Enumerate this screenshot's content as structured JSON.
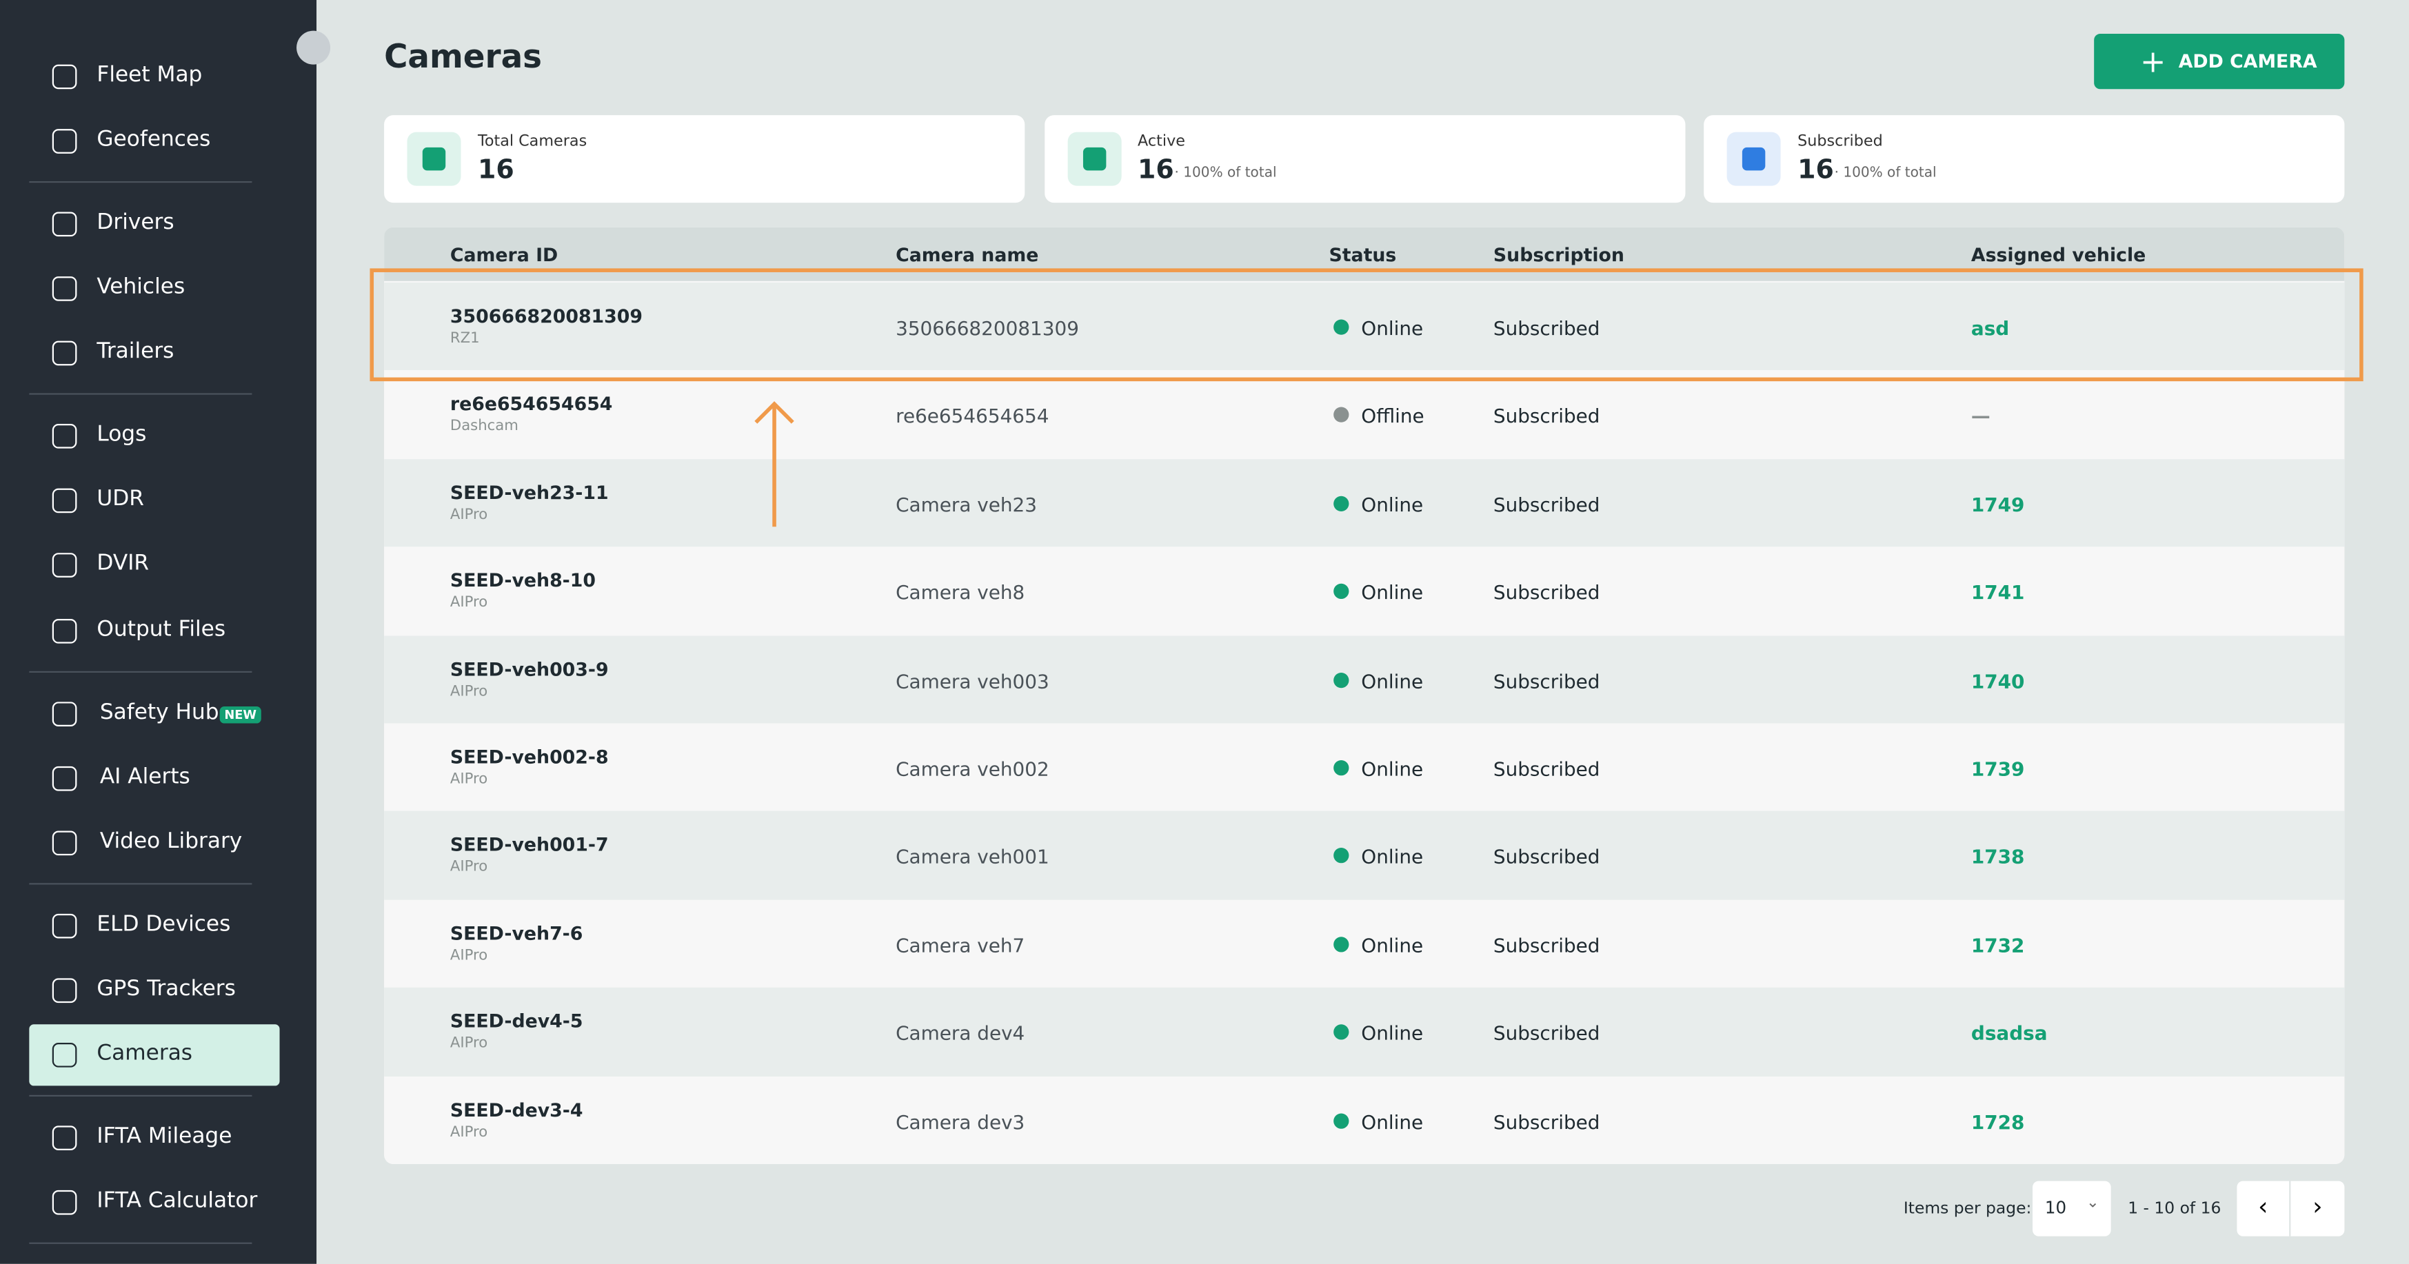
{
  "sidebar": {
    "groups": [
      [
        {
          "label": "Fleet Map"
        },
        {
          "label": "Geofences"
        }
      ],
      [
        {
          "label": "Drivers"
        },
        {
          "label": "Vehicles"
        },
        {
          "label": "Trailers"
        }
      ],
      [
        {
          "label": "Logs"
        },
        {
          "label": "UDR"
        },
        {
          "label": "DVIR"
        },
        {
          "label": "Output Files"
        }
      ],
      [
        {
          "label": "Safety Hub",
          "badge": "NEW"
        },
        {
          "label": "AI Alerts"
        },
        {
          "label": "Video Library"
        }
      ],
      [
        {
          "label": "ELD Devices"
        },
        {
          "label": "GPS Trackers"
        },
        {
          "label": "Cameras",
          "active": true
        }
      ],
      [
        {
          "label": "IFTA Mileage"
        },
        {
          "label": "IFTA Calculator"
        }
      ]
    ]
  },
  "header": {
    "title": "Cameras",
    "add_button": "ADD CAMERA"
  },
  "stats": [
    {
      "label": "Total Cameras",
      "value": 16,
      "icon_color": "#14a074",
      "icon_bg": "#dff3ec"
    },
    {
      "label": "Active",
      "value": 16,
      "note": "· 100% of total",
      "icon_color": "#14a074",
      "icon_bg": "#dff3ec"
    },
    {
      "label": "Subscribed",
      "value": 16,
      "note": "· 100% of total",
      "icon_color": "#2f7de1",
      "icon_bg": "#e2edfb"
    }
  ],
  "table": {
    "columns": [
      "Camera ID",
      "Camera name",
      "Status",
      "Subscription",
      "Assigned vehicle"
    ],
    "rows": [
      {
        "id": "350666820081309",
        "model": "RZ1",
        "name": "350666820081309",
        "status": "Online",
        "status_color": "#14a074",
        "subscription": "Subscribed",
        "vehicle": "asd",
        "vehicle_color": "#14a074"
      },
      {
        "id": "re6e654654654",
        "model": "Dashcam",
        "name": "re6e654654654",
        "status": "Offline",
        "status_color": "#8a9190",
        "subscription": "Subscribed",
        "vehicle": "—",
        "vehicle_color": "#8a9190"
      },
      {
        "id": "SEED-veh23-11",
        "model": "AIPro",
        "name": "Camera veh23",
        "status": "Online",
        "status_color": "#14a074",
        "subscription": "Subscribed",
        "vehicle": "1749",
        "vehicle_color": "#14a074"
      },
      {
        "id": "SEED-veh8-10",
        "model": "AIPro",
        "name": "Camera veh8",
        "status": "Online",
        "status_color": "#14a074",
        "subscription": "Subscribed",
        "vehicle": "1741",
        "vehicle_color": "#14a074"
      },
      {
        "id": "SEED-veh003-9",
        "model": "AIPro",
        "name": "Camera veh003",
        "status": "Online",
        "status_color": "#14a074",
        "subscription": "Subscribed",
        "vehicle": "1740",
        "vehicle_color": "#14a074"
      },
      {
        "id": "SEED-veh002-8",
        "model": "AIPro",
        "name": "Camera veh002",
        "status": "Online",
        "status_color": "#14a074",
        "subscription": "Subscribed",
        "vehicle": "1739",
        "vehicle_color": "#14a074"
      },
      {
        "id": "SEED-veh001-7",
        "model": "AIPro",
        "name": "Camera veh001",
        "status": "Online",
        "status_color": "#14a074",
        "subscription": "Subscribed",
        "vehicle": "1738",
        "vehicle_color": "#14a074"
      },
      {
        "id": "SEED-veh7-6",
        "model": "AIPro",
        "name": "Camera veh7",
        "status": "Online",
        "status_color": "#14a074",
        "subscription": "Subscribed",
        "vehicle": "1732",
        "vehicle_color": "#14a074"
      },
      {
        "id": "SEED-dev4-5",
        "model": "AIPro",
        "name": "Camera dev4",
        "status": "Online",
        "status_color": "#14a074",
        "subscription": "Subscribed",
        "vehicle": "dsadsa",
        "vehicle_color": "#14a074"
      },
      {
        "id": "SEED-dev3-4",
        "model": "AIPro",
        "name": "Camera dev3",
        "status": "Online",
        "status_color": "#14a074",
        "subscription": "Subscribed",
        "vehicle": "1728",
        "vehicle_color": "#14a074"
      }
    ]
  },
  "pagination": {
    "items_per_page_label": "Items per page:",
    "per_page": 10,
    "range": "1 - 10 of 16"
  }
}
